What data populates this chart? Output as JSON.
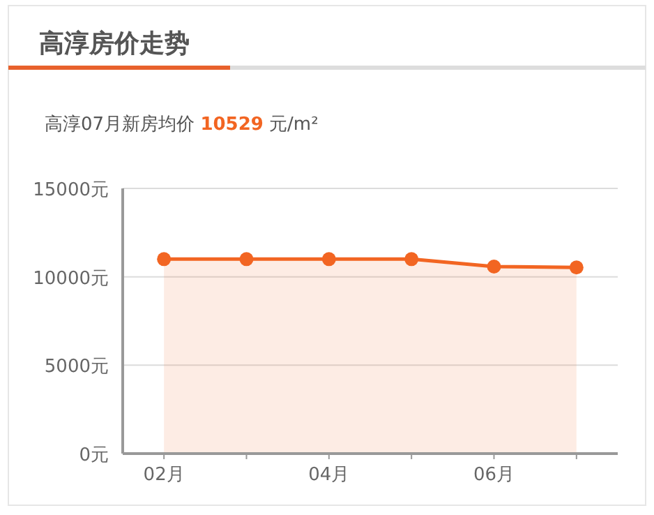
{
  "chart_data": {
    "type": "area",
    "title": "高淳房价走势",
    "subtitle": "高淳07月新房均价 10529 元/m²",
    "categories": [
      "02月",
      null,
      "04月",
      null,
      "06月",
      null
    ],
    "series": [
      {
        "color": "#f26522",
        "values": [
          11000,
          11000,
          11000,
          11000,
          10580,
          10529
        ]
      }
    ],
    "ylim": [
      0,
      15000
    ],
    "yticks": [
      {
        "value": 0,
        "label": "0元"
      },
      {
        "value": 5000,
        "label": "5000元"
      },
      {
        "value": 10000,
        "label": "10000元"
      },
      {
        "value": 15000,
        "label": "15000元"
      }
    ],
    "grid": "y",
    "marker": "circle",
    "line_style": "solid"
  }
}
